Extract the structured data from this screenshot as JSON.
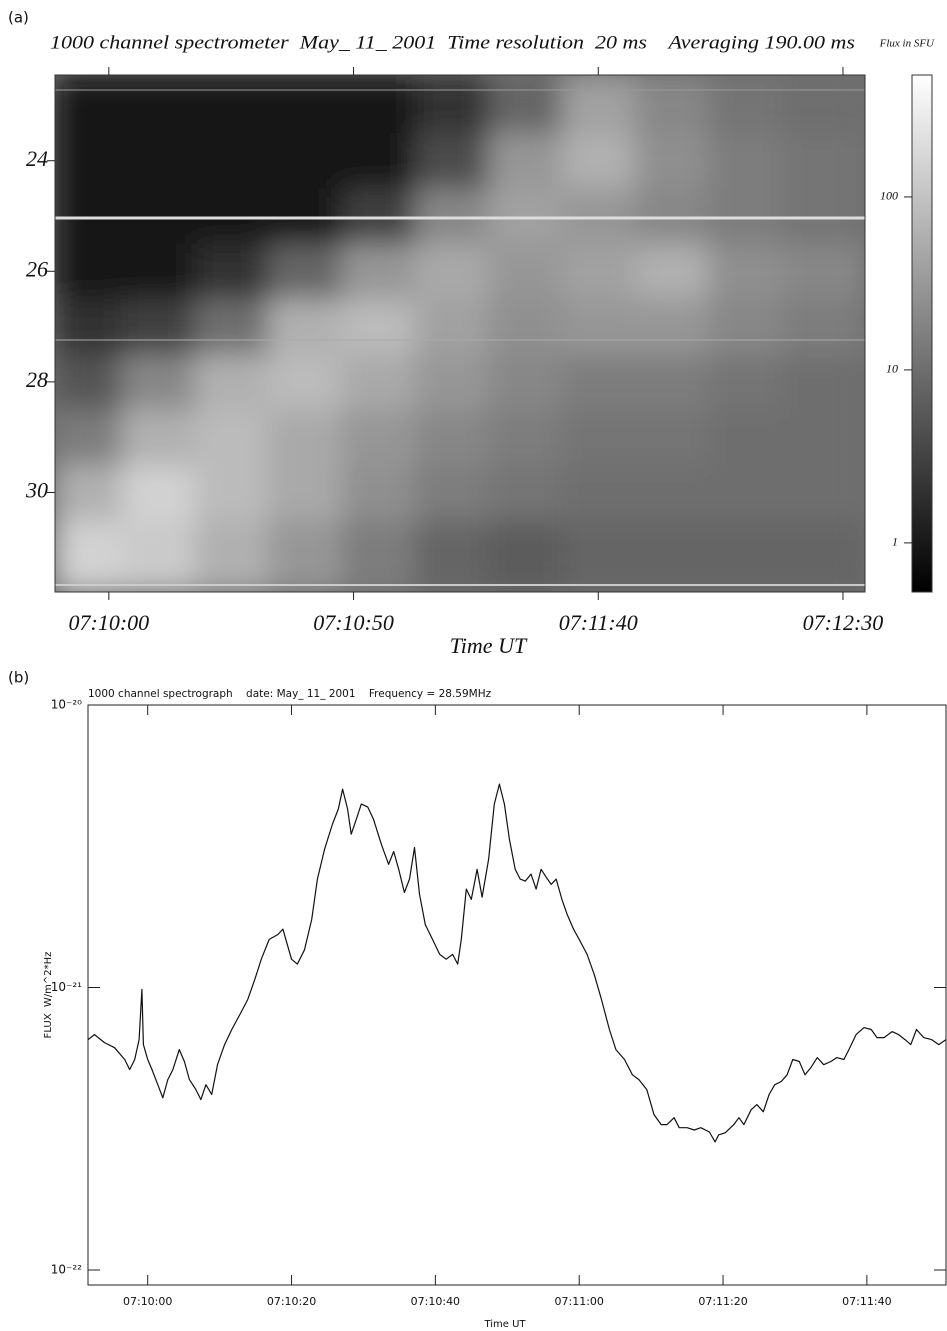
{
  "chart_data": [
    {
      "type": "heatmap",
      "panel_label": "(a)",
      "title": "1000 channel spectrometer  May_ 11_ 2001  Time resolution  20 ms    Averaging 190.00 ms",
      "x_label": "Time UT",
      "xlim": [
        25789,
        25954.5
      ],
      "xticks": [
        {
          "value": 25800,
          "label": "07:10:00"
        },
        {
          "value": 25850,
          "label": "07:10:50"
        },
        {
          "value": 25900,
          "label": "07:11:40"
        },
        {
          "value": 25950,
          "label": "07:12:30"
        }
      ],
      "ylim": [
        22.45,
        31.8
      ],
      "y_inverted": true,
      "yticks": [
        24,
        26,
        28,
        30
      ],
      "x": [
        25795,
        25810,
        25825,
        25840,
        25855,
        25870,
        25885,
        25900,
        25915,
        25930,
        25945
      ],
      "y": [
        23,
        24,
        25,
        26,
        27,
        28,
        29,
        30,
        31
      ],
      "z": [
        [
          1,
          1,
          1,
          1,
          1,
          2,
          8,
          40,
          20,
          12,
          10
        ],
        [
          1,
          1,
          1,
          1,
          1,
          4,
          30,
          60,
          25,
          15,
          12
        ],
        [
          1,
          1,
          1,
          1,
          3,
          20,
          40,
          30,
          20,
          15,
          12
        ],
        [
          1,
          1,
          2,
          8,
          30,
          50,
          30,
          40,
          60,
          25,
          20
        ],
        [
          2,
          3,
          10,
          60,
          80,
          40,
          25,
          30,
          30,
          20,
          15
        ],
        [
          5,
          20,
          60,
          80,
          50,
          30,
          20,
          15,
          15,
          12,
          10
        ],
        [
          15,
          60,
          80,
          50,
          30,
          20,
          15,
          12,
          12,
          10,
          10
        ],
        [
          60,
          150,
          80,
          50,
          25,
          15,
          12,
          10,
          10,
          10,
          10
        ],
        [
          150,
          120,
          60,
          30,
          15,
          8,
          6,
          8,
          8,
          8,
          8
        ]
      ],
      "colorbar": {
        "label": "Flux in SFU",
        "log": true,
        "zlim": [
          0.52,
          507
        ],
        "ticks": [
          1,
          10,
          100
        ]
      }
    },
    {
      "type": "line",
      "panel_label": "(b)",
      "title": "1000 channel spectrograph    date: May_ 11_ 2001    Frequency = 28.59MHz",
      "x_label": "Time UT",
      "y_label": "FLUX  W/m^2*Hz",
      "log_y": true,
      "color": "#111111",
      "xlim": [
        25791.7,
        25911.0
      ],
      "xticks": [
        {
          "value": 25800,
          "label": "07:10:00"
        },
        {
          "value": 25820,
          "label": "07:10:20"
        },
        {
          "value": 25840,
          "label": "07:10:40"
        },
        {
          "value": 25860,
          "label": "07:11:00"
        },
        {
          "value": 25880,
          "label": "07:11:20"
        },
        {
          "value": 25900,
          "label": "07:11:40"
        }
      ],
      "ylim": [
        8.85e-23,
        1e-20
      ],
      "yticks": [
        {
          "value": 1e-22,
          "label": "10⁻²²"
        },
        {
          "value": 1e-21,
          "label": "10⁻²¹"
        },
        {
          "value": 1e-20,
          "label": "10⁻²⁰"
        }
      ],
      "x": [
        25791.7,
        25792.6,
        25794.0,
        25795.4,
        25796.8,
        25797.5,
        25798.2,
        25798.8,
        25799.2,
        25799.4,
        25800,
        25800.6,
        25801.4,
        25802.1,
        25802.8,
        25803.5,
        25804.4,
        25805.1,
        25805.8,
        25806.7,
        25807.4,
        25808.1,
        25808.9,
        25809.7,
        25810.7,
        25811.7,
        25812.8,
        25813.9,
        25814.9,
        25815.8,
        25816.9,
        25818.1,
        25818.8,
        25820.0,
        25820.8,
        25821.8,
        25822.8,
        25823.6,
        25824.6,
        25825.7,
        25826.5,
        25827.1,
        25827.8,
        25828.3,
        25829.0,
        25829.7,
        25830.6,
        25831.4,
        25832.5,
        25833.5,
        25834.2,
        25834.9,
        25835.7,
        25836.4,
        25837.1,
        25837.8,
        25838.6,
        25839.6,
        25840.6,
        25841.5,
        25842.4,
        25843.1,
        25843.6,
        25844.3,
        25845.0,
        25845.8,
        25846.5,
        25847.4,
        25848.2,
        25848.9,
        25849.6,
        25850.3,
        25851.1,
        25851.8,
        25852.5,
        25853.3,
        25854.0,
        25854.7,
        25855.4,
        25856.1,
        25856.8,
        25857.6,
        25858.3,
        25859.2,
        25860.0,
        25861.1,
        25862.1,
        25863.1,
        25864.2,
        25865.1,
        25866.3,
        25867.4,
        25868.3,
        25869.4,
        25870.4,
        25871.4,
        25872.2,
        25873.2,
        25873.9,
        25875.0,
        25876.0,
        25876.9,
        25878.1,
        25878.9,
        25879.4,
        25880.3,
        25881.5,
        25882.2,
        25882.9,
        25883.9,
        25884.7,
        25885.6,
        25886.4,
        25887.2,
        25888.1,
        25888.9,
        25889.7,
        25890.6,
        25891.4,
        25892.2,
        25893.1,
        25894.0,
        25895.0,
        25895.8,
        25896.8,
        25897.5,
        25898.5,
        25899.6,
        25900.6,
        25901.4,
        25902.4,
        25903.5,
        25904.4,
        25905.3,
        25906.1,
        25906.9,
        25907.9,
        25909.0,
        25910.0,
        25911.0
      ],
      "values": [
        6.54e-22,
        6.81e-22,
        6.38e-22,
        6.12e-22,
        5.56e-22,
        5.12e-22,
        5.56e-22,
        6.54e-22,
        9.84e-22,
        6.28e-22,
        5.56e-22,
        5.12e-22,
        4.53e-22,
        4.07e-22,
        4.72e-22,
        5.12e-22,
        6.03e-22,
        5.47e-22,
        4.72e-22,
        4.35e-22,
        4.01e-22,
        4.53e-22,
        4.18e-22,
        5.33e-22,
        6.28e-22,
        7.1e-22,
        8.02e-22,
        9.06e-22,
        1.07e-21,
        1.26e-21,
        1.48e-21,
        1.54e-21,
        1.61e-21,
        1.26e-21,
        1.21e-21,
        1.36e-21,
        1.74e-21,
        2.42e-21,
        3.09e-21,
        3.79e-21,
        4.28e-21,
        5.04e-21,
        4.28e-21,
        3.49e-21,
        3.94e-21,
        4.46e-21,
        4.35e-21,
        3.94e-21,
        3.21e-21,
        2.73e-21,
        3.03e-21,
        2.62e-21,
        2.17e-21,
        2.42e-21,
        3.13e-21,
        2.14e-21,
        1.67e-21,
        1.48e-21,
        1.31e-21,
        1.26e-21,
        1.31e-21,
        1.21e-21,
        1.48e-21,
        2.23e-21,
        2.05e-21,
        2.62e-21,
        2.09e-21,
        2.84e-21,
        4.46e-21,
        5.25e-21,
        4.46e-21,
        3.35e-21,
        2.62e-21,
        2.42e-21,
        2.38e-21,
        2.52e-21,
        2.23e-21,
        2.62e-21,
        2.46e-21,
        2.32e-21,
        2.42e-21,
        2.05e-21,
        1.82e-21,
        1.61e-21,
        1.48e-21,
        1.31e-21,
        1.11e-21,
        9.06e-22,
        7.1e-22,
        6.03e-22,
        5.56e-22,
        4.91e-22,
        4.72e-22,
        4.35e-22,
        3.55e-22,
        3.27e-22,
        3.27e-22,
        3.46e-22,
        3.19e-22,
        3.19e-22,
        3.13e-22,
        3.19e-22,
        3.08e-22,
        2.84e-22,
        3.01e-22,
        3.06e-22,
        3.27e-22,
        3.46e-22,
        3.27e-22,
        3.69e-22,
        3.85e-22,
        3.63e-22,
        4.18e-22,
        4.53e-22,
        4.65e-22,
        4.91e-22,
        5.56e-22,
        5.47e-22,
        4.91e-22,
        5.2e-22,
        5.65e-22,
        5.33e-22,
        5.47e-22,
        5.65e-22,
        5.56e-22,
        6.03e-22,
        6.81e-22,
        7.21e-22,
        7.1e-22,
        6.65e-22,
        6.65e-22,
        6.98e-22,
        6.81e-22,
        6.54e-22,
        6.28e-22,
        7.1e-22,
        6.65e-22,
        6.54e-22,
        6.28e-22,
        6.54e-22
      ]
    }
  ]
}
